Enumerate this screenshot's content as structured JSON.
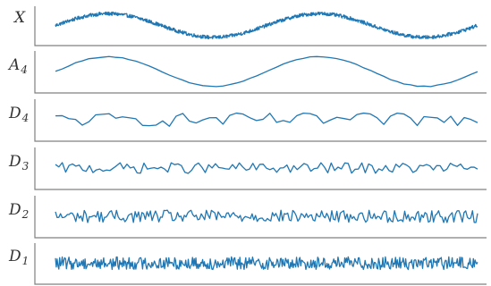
{
  "chart_data": {
    "type": "line",
    "description_kind": "stacked wavelet decomposition panels",
    "line_color": "#1f77b4",
    "axis_color": "#808080",
    "label_color": "#333333",
    "grid": false,
    "x_ticks_shown": false,
    "y_ticks_shown": false,
    "panels": [
      {
        "label_main": "X",
        "label_sub": "",
        "model": {
          "n": 1000,
          "base_amp": 1.0,
          "periods": 2.0,
          "phase": 0.0,
          "noise": 0.15,
          "smooth": 1
        },
        "ylim": [
          -1.4,
          1.4
        ]
      },
      {
        "label_main": "A",
        "label_sub": "4",
        "model": {
          "n": 64,
          "base_amp": 1.0,
          "periods": 2.0,
          "phase": 0.0,
          "noise": 0.03,
          "smooth": 1
        },
        "ylim": [
          -1.2,
          1.2
        ]
      },
      {
        "label_main": "D",
        "label_sub": "4",
        "model": {
          "n": 64,
          "base_amp": 0.0,
          "periods": 0,
          "phase": 0.0,
          "noise": 0.6,
          "smooth": 1
        },
        "ylim": [
          -1.6,
          1.6
        ]
      },
      {
        "label_main": "D",
        "label_sub": "3",
        "model": {
          "n": 125,
          "base_amp": 0.0,
          "periods": 0,
          "phase": 0.0,
          "noise": 0.6,
          "smooth": 1
        },
        "ylim": [
          -2.0,
          2.0
        ]
      },
      {
        "label_main": "D",
        "label_sub": "2",
        "model": {
          "n": 250,
          "base_amp": 0.0,
          "periods": 0,
          "phase": 0.0,
          "noise": 0.7,
          "smooth": 1
        },
        "ylim": [
          -2.0,
          2.0
        ]
      },
      {
        "label_main": "D",
        "label_sub": "1",
        "model": {
          "n": 500,
          "base_amp": 0.0,
          "periods": 0,
          "phase": 0.0,
          "noise": 0.8,
          "smooth": 1
        },
        "ylim": [
          -2.2,
          2.2
        ]
      }
    ]
  }
}
